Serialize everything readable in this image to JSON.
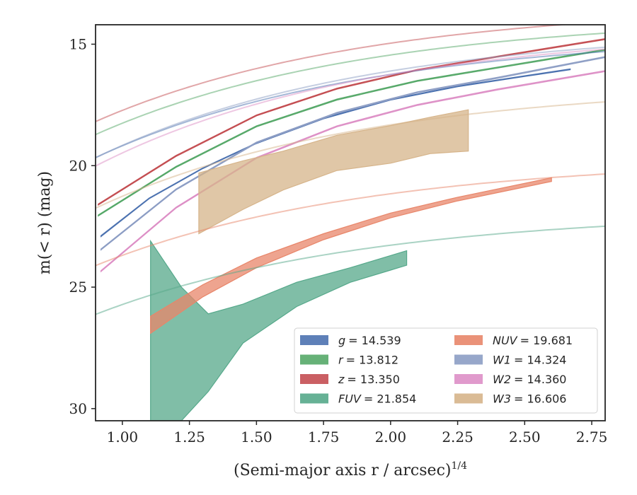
{
  "chart_data": {
    "type": "area",
    "xlabel": "(Semi-major axis r / arcsec)",
    "xlabel_superscript": "1/4",
    "ylabel": "m(< r) (mag)",
    "xlim": [
      0.9,
      2.8
    ],
    "ylim": [
      30.5,
      14.2
    ],
    "y_inverted": true,
    "grid": false,
    "legend_position": "lower-right",
    "xticks": [
      1.0,
      1.25,
      1.5,
      1.75,
      2.0,
      2.25,
      2.5,
      2.75
    ],
    "xtick_labels": [
      "1.00",
      "1.25",
      "1.50",
      "1.75",
      "2.00",
      "2.25",
      "2.50",
      "2.75"
    ],
    "yticks": [
      15,
      20,
      25,
      30
    ],
    "ytick_labels": [
      "15",
      "20",
      "25",
      "30"
    ],
    "series": [
      {
        "name": "g = 14.539",
        "legend_var": "g",
        "legend_val": "= 14.539",
        "color": "#4c72b0",
        "model": {
          "asymptote": 14.539,
          "amplitude": 12.62,
          "decay": 1.0,
          "x_start": 0.9,
          "x_end": 2.8
        },
        "data": {
          "x": [
            0.92,
            1.1,
            1.3,
            1.5,
            1.75,
            2.0,
            2.25,
            2.5,
            2.67
          ],
          "y_low": [
            22.92,
            21.36,
            20.12,
            19.09,
            18.07,
            17.3,
            16.75,
            16.33,
            16.05
          ],
          "y_high": [
            22.88,
            21.33,
            20.09,
            19.06,
            18.04,
            17.27,
            16.72,
            16.3,
            16.02
          ]
        }
      },
      {
        "name": "r = 13.812",
        "legend_var": "r",
        "legend_val": "= 13.812",
        "color": "#55a868",
        "model": {
          "asymptote": 13.812,
          "amplitude": 12.07,
          "decay": 1.0,
          "x_start": 0.9,
          "x_end": 2.8
        },
        "data": {
          "x": [
            0.91,
            1.2,
            1.5,
            1.8,
            2.1,
            2.4,
            2.8
          ],
          "y_low": [
            22.07,
            20.07,
            18.4,
            17.3,
            16.53,
            15.98,
            15.25
          ],
          "y_high": [
            22.03,
            20.03,
            18.36,
            17.26,
            16.49,
            15.94,
            15.21
          ]
        }
      },
      {
        "name": "z = 13.350",
        "legend_var": "z",
        "legend_val": "= 13.350",
        "color": "#c44e52",
        "model": {
          "asymptote": 13.35,
          "amplitude": 11.89,
          "decay": 1.0,
          "x_start": 0.9,
          "x_end": 2.8
        },
        "data": {
          "x": [
            0.91,
            1.2,
            1.5,
            1.8,
            2.1,
            2.4,
            2.8
          ],
          "y_low": [
            21.62,
            19.62,
            17.95,
            16.85,
            16.08,
            15.53,
            14.81
          ],
          "y_high": [
            21.58,
            19.58,
            17.91,
            16.81,
            16.04,
            15.49,
            14.77
          ]
        }
      },
      {
        "name": "FUV = 21.854",
        "legend_var": "FUV",
        "legend_val": "= 21.854",
        "color": "#55a88a",
        "model": {
          "asymptote": 21.854,
          "amplitude": 10.5,
          "decay": 1.0,
          "x_start": 0.9,
          "x_end": 2.8
        },
        "data": {
          "x": [
            1.105,
            1.105,
            1.22,
            1.32,
            1.45,
            1.65,
            1.85,
            2.0,
            2.06
          ],
          "y_low": [
            23.1,
            30.5,
            30.5,
            29.3,
            27.3,
            25.8,
            24.8,
            24.3,
            24.1
          ],
          "y_high": [
            23.1,
            23.1,
            25.0,
            26.1,
            25.7,
            24.8,
            24.2,
            23.7,
            23.5
          ]
        }
      },
      {
        "name": "NUV = 19.681",
        "legend_var": "NUV",
        "legend_val": "= 19.681",
        "color": "#e8866a",
        "model": {
          "asymptote": 19.681,
          "amplitude": 10.9,
          "decay": 1.0,
          "x_start": 0.9,
          "x_end": 2.8
        },
        "data": {
          "x": [
            1.105,
            1.3,
            1.5,
            1.75,
            2.0,
            2.25,
            2.6
          ],
          "y_low": [
            26.9,
            25.4,
            24.2,
            23.05,
            22.15,
            21.45,
            20.65
          ],
          "y_high": [
            26.2,
            24.9,
            23.8,
            22.8,
            21.95,
            21.3,
            20.5
          ]
        }
      },
      {
        "name": "W1 = 14.324",
        "legend_var": "W1",
        "legend_val": "= 14.324",
        "color": "#8c9dc4",
        "model": {
          "asymptote": 14.324,
          "amplitude": 13.16,
          "decay": 1.0,
          "x_start": 0.9,
          "x_end": 2.8
        },
        "data": {
          "x": [
            0.92,
            1.2,
            1.5,
            1.8,
            2.1,
            2.4,
            2.8
          ],
          "y_low": [
            23.47,
            21.0,
            19.07,
            17.85,
            17.0,
            16.4,
            15.55
          ],
          "y_high": [
            23.43,
            20.96,
            19.03,
            17.81,
            16.96,
            16.36,
            15.51
          ]
        }
      },
      {
        "name": "W2 = 14.360",
        "legend_var": "W2",
        "legend_val": "= 14.360",
        "color": "#dd8fc6",
        "model": {
          "asymptote": 14.36,
          "amplitude": 13.91,
          "decay": 1.0,
          "x_start": 0.9,
          "x_end": 2.8
        },
        "data": {
          "x": [
            0.92,
            1.2,
            1.5,
            1.8,
            2.1,
            2.4,
            2.8
          ],
          "y_low": [
            24.36,
            21.75,
            19.7,
            18.4,
            17.52,
            16.88,
            16.13
          ],
          "y_high": [
            24.32,
            21.71,
            19.66,
            18.36,
            17.48,
            16.84,
            16.09
          ]
        }
      },
      {
        "name": "W3 = 16.606",
        "legend_var": "W3",
        "legend_val": "= 16.606",
        "color": "#d6b48a",
        "model": {
          "asymptote": 16.606,
          "amplitude": 12.65,
          "decay": 1.0,
          "x_start": 0.9,
          "x_end": 2.8
        },
        "data": {
          "x": [
            1.285,
            1.285,
            1.45,
            1.6,
            1.8,
            2.0,
            2.15,
            2.29,
            2.29
          ],
          "y_low": [
            22.8,
            22.8,
            21.8,
            21.0,
            20.2,
            19.9,
            19.5,
            19.4,
            19.4
          ],
          "y_high": [
            22.8,
            20.3,
            19.8,
            19.4,
            18.75,
            18.35,
            18.0,
            17.7,
            17.7
          ]
        }
      }
    ]
  }
}
